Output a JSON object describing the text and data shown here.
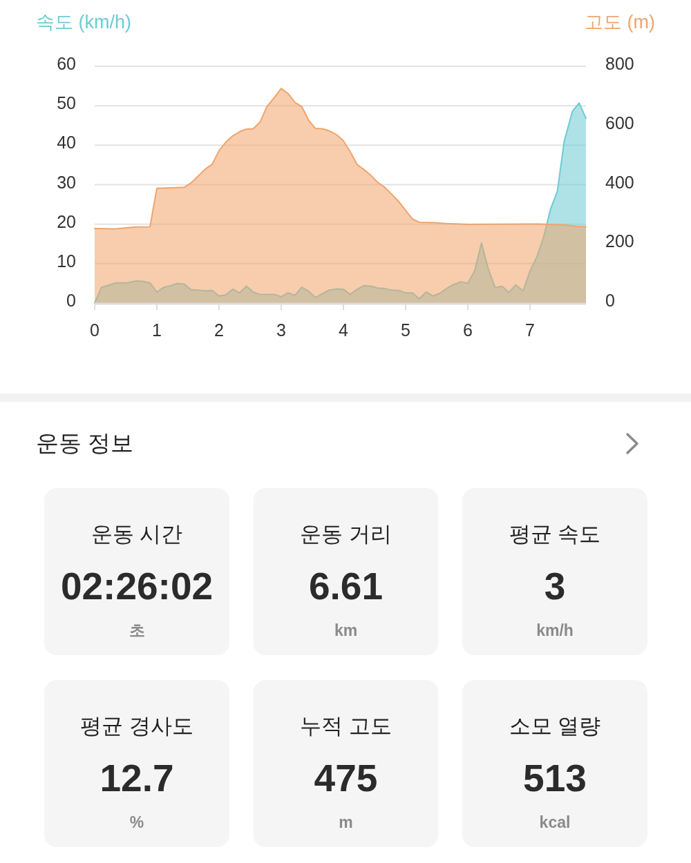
{
  "chart_data": [
    {
      "type": "area",
      "ylabel": "속도 (km/h)",
      "y2label": "고도 (m)",
      "xlim": [
        0,
        7.9
      ],
      "xticks": [
        0,
        1,
        2,
        3,
        4,
        5,
        6,
        7
      ],
      "ylim": [
        0,
        60
      ],
      "yticks": [
        0,
        10,
        20,
        30,
        40,
        50,
        60
      ],
      "y2lim": [
        0,
        800
      ],
      "y2ticks": [
        0,
        200,
        400,
        600,
        800
      ],
      "grid": "y",
      "series": [
        {
          "color": "#6ccbd3",
          "axis": "y",
          "x": [
            0,
            0.11,
            0.22,
            0.33,
            0.52,
            0.66,
            0.77,
            0.89,
            1.0,
            1.11,
            1.22,
            1.33,
            1.44,
            1.55,
            1.66,
            1.77,
            1.89,
            2.0,
            2.11,
            2.22,
            2.33,
            2.44,
            2.55,
            2.66,
            2.89,
            3.0,
            3.11,
            3.22,
            3.33,
            3.44,
            3.55,
            3.66,
            3.77,
            3.9,
            4.0,
            4.11,
            4.22,
            4.33,
            4.44,
            4.55,
            4.66,
            4.77,
            4.89,
            5.0,
            5.11,
            5.22,
            5.33,
            5.44,
            5.55,
            5.66,
            5.77,
            5.89,
            6.0,
            6.11,
            6.22,
            6.33,
            6.44,
            6.55,
            6.66,
            6.77,
            6.89,
            7.0,
            7.11,
            7.22,
            7.33,
            7.44,
            7.55,
            7.68,
            7.79,
            7.9
          ],
          "values": [
            0,
            4.0,
            4.5,
            5.1,
            5.1,
            5.6,
            5.5,
            5.1,
            2.8,
            4.0,
            4.4,
            5.0,
            4.8,
            3.4,
            3.3,
            3.1,
            3.2,
            1.8,
            2.1,
            3.5,
            2.6,
            4.3,
            2.8,
            2.2,
            2.2,
            1.6,
            2.6,
            2.0,
            4.0,
            3.0,
            1.4,
            2.4,
            3.3,
            3.6,
            3.5,
            2.2,
            3.5,
            4.4,
            4.3,
            3.8,
            3.7,
            3.3,
            3.2,
            2.6,
            2.6,
            1.1,
            2.8,
            1.8,
            2.5,
            3.7,
            4.7,
            5.4,
            5.0,
            8.2,
            15.2,
            8.6,
            3.9,
            4.3,
            2.7,
            4.6,
            3.1,
            8.1,
            11.7,
            16.8,
            23.8,
            28.3,
            41.0,
            48.5,
            50.7,
            46.8
          ]
        },
        {
          "color": "#f0a46c",
          "axis": "y2",
          "x": [
            0,
            0.33,
            0.66,
            0.89,
            1.0,
            1.44,
            1.55,
            1.77,
            1.89,
            2.0,
            2.11,
            2.22,
            2.33,
            2.44,
            2.55,
            2.66,
            2.77,
            2.89,
            3.0,
            3.11,
            3.22,
            3.33,
            3.44,
            3.55,
            3.66,
            3.77,
            3.89,
            4.0,
            4.11,
            4.22,
            4.33,
            4.44,
            4.55,
            4.66,
            4.77,
            4.89,
            5.0,
            5.11,
            5.22,
            5.44,
            5.66,
            6.0,
            7.14,
            7.55,
            7.77,
            7.9
          ],
          "values": [
            252,
            251,
            257,
            258,
            388,
            391,
            406,
            451,
            469,
            515,
            544,
            565,
            579,
            588,
            589,
            612,
            664,
            695,
            725,
            708,
            678,
            664,
            618,
            590,
            589,
            582,
            569,
            548,
            511,
            468,
            451,
            432,
            408,
            392,
            369,
            343,
            313,
            284,
            273,
            272,
            269,
            266,
            267,
            264,
            259,
            258
          ]
        }
      ]
    },
    {
      "type": "other",
      "title": "운동 정보",
      "annotations": [
        "운동 시간",
        "02:26:02",
        "초",
        "운동 거리",
        "6.61",
        "km",
        "평균 속도",
        "3",
        "km/h",
        "평균 경사도",
        "12.7",
        "%",
        "누적 고도",
        "475",
        "m",
        "소모 열량",
        "513",
        "kcal"
      ]
    }
  ]
}
